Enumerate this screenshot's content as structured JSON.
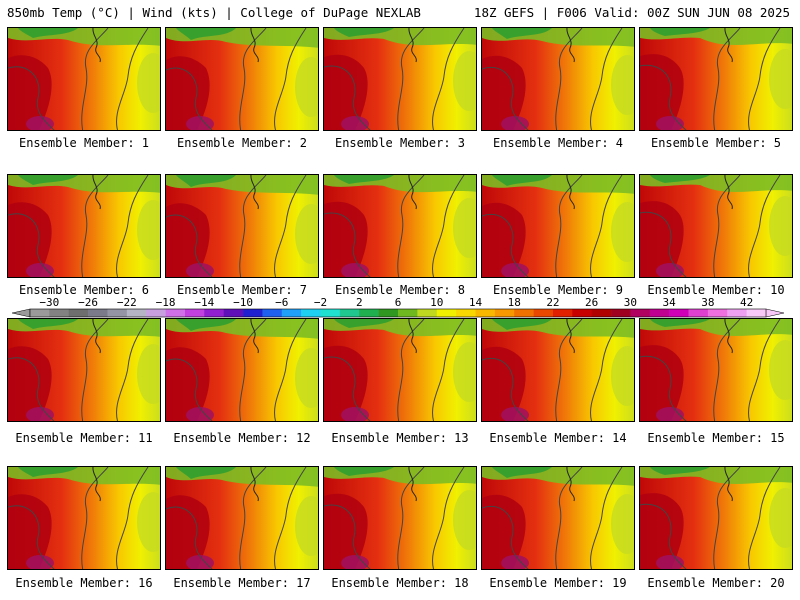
{
  "header": {
    "left": "850mb Temp (°C) | Wind (kts) | College of DuPage NEXLAB",
    "right": "18Z GEFS | F006 Valid: 00Z SUN JUN 08 2025"
  },
  "panels": [
    {
      "label": "Ensemble Member: 1"
    },
    {
      "label": "Ensemble Member: 2"
    },
    {
      "label": "Ensemble Member: 3"
    },
    {
      "label": "Ensemble Member: 4"
    },
    {
      "label": "Ensemble Member: 5"
    },
    {
      "label": "Ensemble Member: 6"
    },
    {
      "label": "Ensemble Member: 7"
    },
    {
      "label": "Ensemble Member: 8"
    },
    {
      "label": "Ensemble Member: 9"
    },
    {
      "label": "Ensemble Member: 10"
    },
    {
      "label": "Ensemble Member: 11"
    },
    {
      "label": "Ensemble Member: 12"
    },
    {
      "label": "Ensemble Member: 13"
    },
    {
      "label": "Ensemble Member: 14"
    },
    {
      "label": "Ensemble Member: 15"
    },
    {
      "label": "Ensemble Member: 16"
    },
    {
      "label": "Ensemble Member: 17"
    },
    {
      "label": "Ensemble Member: 18"
    },
    {
      "label": "Ensemble Member: 19"
    },
    {
      "label": "Ensemble Member: 20"
    }
  ],
  "colorbar": {
    "tick_labels": [
      "-30",
      "-26",
      "-22",
      "-18",
      "-14",
      "-10",
      "-6",
      "-2",
      "2",
      "6",
      "10",
      "14",
      "18",
      "22",
      "26",
      "30",
      "34",
      "38",
      "42"
    ],
    "colors": [
      "#9a9a9a",
      "#828282",
      "#6e6e6e",
      "#7a7a8a",
      "#9494a4",
      "#b4b4c4",
      "#c8a0e0",
      "#d070e8",
      "#c040e0",
      "#9020d0",
      "#6010b8",
      "#2020d0",
      "#2060f0",
      "#20a0f8",
      "#20d0f0",
      "#20e0d0",
      "#20c890",
      "#20b050",
      "#309820",
      "#70b820",
      "#c0d820",
      "#f0f000",
      "#f8d800",
      "#f8b800",
      "#f89800",
      "#f07000",
      "#e84800",
      "#e02000",
      "#c80000",
      "#b00000",
      "#a00020",
      "#b00060",
      "#c00090",
      "#d000b8",
      "#e040d0",
      "#f070e0",
      "#f0a0f0",
      "#f8c8f8"
    ]
  }
}
